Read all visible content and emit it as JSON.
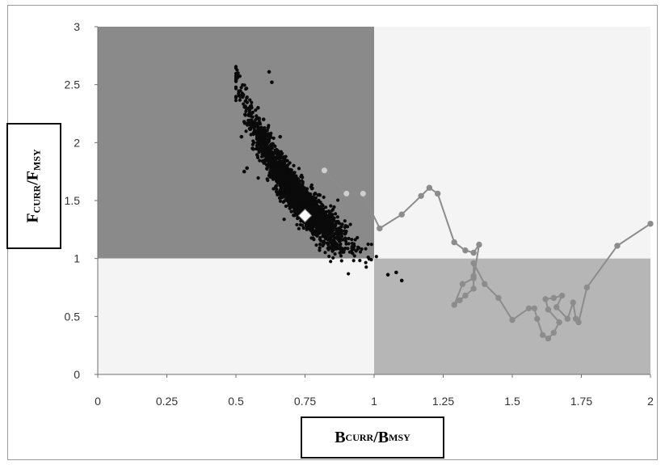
{
  "chart_data": {
    "type": "scatter",
    "title": "",
    "xlabel": {
      "main1": "B",
      "sub1": "CURR",
      "sep": "/",
      "main2": "B",
      "sub2": "MSY"
    },
    "ylabel": {
      "main1": "F",
      "sub1": "CURR",
      "sep": "/",
      "main2": "F",
      "sub2": "MSY"
    },
    "xlim": [
      0,
      2
    ],
    "ylim": [
      0,
      3
    ],
    "x_ticks": [
      "0",
      "0.25",
      "0.5",
      "0.75",
      "1",
      "1.25",
      "1.5",
      "1.75",
      "2"
    ],
    "y_ticks": [
      "0",
      "0.5",
      "1",
      "1.5",
      "2",
      "2.5",
      "3"
    ],
    "grid": false,
    "quadrants": [
      {
        "name": "overfishing-overfished",
        "x": [
          0,
          1
        ],
        "y": [
          1,
          3
        ],
        "color": "#8a8a8a"
      },
      {
        "name": "overfishing-not-overfished",
        "x": [
          1,
          2
        ],
        "y": [
          1,
          3
        ],
        "color": "#f4f4f4"
      },
      {
        "name": "not-overfishing-overfished",
        "x": [
          0,
          1
        ],
        "y": [
          0,
          1
        ],
        "color": "#f4f4f4"
      },
      {
        "name": "not-overfishing-not-overfished",
        "x": [
          1,
          2
        ],
        "y": [
          0,
          1
        ],
        "color": "#b6b6b6"
      }
    ],
    "series": [
      {
        "type": "scatter-cloud",
        "color": "#0a0a0a",
        "outliers": [
          [
            0.62,
            2.61
          ],
          [
            0.63,
            2.52
          ],
          [
            0.53,
            2.18
          ],
          [
            0.55,
            2.12
          ],
          [
            0.52,
            2.05
          ],
          [
            0.56,
            1.95
          ],
          [
            0.53,
            1.75
          ],
          [
            0.54,
            1.78
          ],
          [
            1.1,
            0.81
          ],
          [
            1.05,
            0.86
          ],
          [
            1.08,
            0.88
          ],
          [
            0.58,
            2.3
          ],
          [
            0.6,
            2.2
          ],
          [
            0.66,
            2.05
          ]
        ]
      },
      {
        "type": "trajectory",
        "color": "#8c8c8c",
        "values": [
          [
            0.82,
            1.76
          ],
          [
            0.9,
            1.56
          ],
          [
            0.96,
            1.56
          ],
          [
            1.02,
            1.26
          ],
          [
            1.1,
            1.38
          ],
          [
            1.17,
            1.54
          ],
          [
            1.2,
            1.61
          ],
          [
            1.23,
            1.56
          ],
          [
            1.29,
            1.14
          ],
          [
            1.33,
            1.07
          ],
          [
            1.36,
            1.05
          ],
          [
            1.38,
            1.12
          ],
          [
            1.36,
            0.83
          ],
          [
            1.32,
            0.78
          ],
          [
            1.29,
            0.6
          ],
          [
            1.31,
            0.64
          ],
          [
            1.33,
            0.68
          ],
          [
            1.36,
            0.74
          ],
          [
            1.36,
            0.85
          ],
          [
            1.36,
            0.96
          ],
          [
            1.4,
            0.78
          ],
          [
            1.45,
            0.66
          ],
          [
            1.5,
            0.47
          ],
          [
            1.56,
            0.57
          ],
          [
            1.58,
            0.57
          ],
          [
            1.59,
            0.48
          ],
          [
            1.61,
            0.34
          ],
          [
            1.63,
            0.31
          ],
          [
            1.65,
            0.36
          ],
          [
            1.67,
            0.45
          ],
          [
            1.63,
            0.56
          ],
          [
            1.62,
            0.65
          ],
          [
            1.65,
            0.66
          ],
          [
            1.68,
            0.68
          ],
          [
            1.66,
            0.58
          ],
          [
            1.7,
            0.48
          ],
          [
            1.72,
            0.62
          ],
          [
            1.73,
            0.48
          ],
          [
            1.74,
            0.45
          ],
          [
            1.77,
            0.75
          ],
          [
            1.88,
            1.11
          ],
          [
            2.0,
            1.3
          ]
        ]
      },
      {
        "type": "highlight",
        "color": "#ffffff",
        "values": [
          [
            0.75,
            1.37
          ]
        ]
      }
    ]
  }
}
